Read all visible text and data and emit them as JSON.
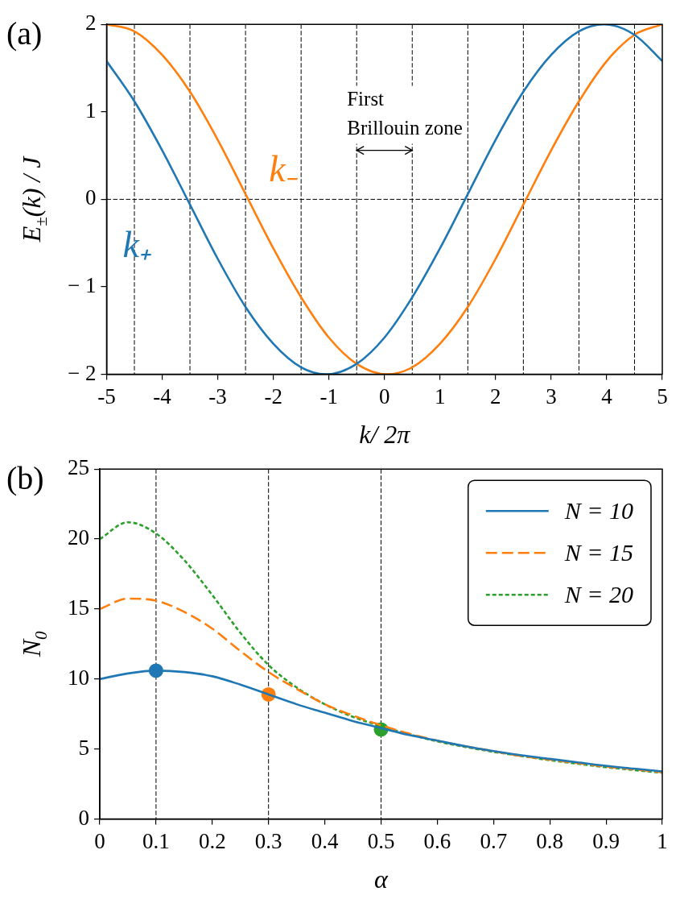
{
  "chart_data": [
    {
      "type": "line",
      "title": "(a)",
      "xlabel": "k/ 2π",
      "ylabel": "E$_{±}$(k) / J",
      "xlim": [
        -5,
        5
      ],
      "ylim": [
        -2,
        2
      ],
      "xticks": [
        -5,
        -4,
        -3,
        -2,
        -1,
        0,
        1,
        2,
        3,
        4,
        5
      ],
      "yticks": [
        {
          "value": -2,
          "label": "− 2"
        },
        {
          "value": -1,
          "label": "− 1"
        },
        0,
        1,
        2
      ],
      "grid": false,
      "legend": false,
      "series": [
        {
          "name": "k₊",
          "color": "#1f77b4",
          "x": [
            -5,
            -4.5,
            -4,
            -3.5,
            -3,
            -2.5,
            -2,
            -1.5,
            -1.05,
            -0.5,
            0,
            0.5,
            1,
            1.5,
            2,
            2.5,
            3,
            3.5,
            3.95,
            4.5,
            5
          ],
          "values": [
            1.58,
            1.12,
            0.56,
            -0.06,
            -0.68,
            -1.23,
            -1.65,
            -1.92,
            -2,
            -1.88,
            -1.58,
            -1.12,
            -0.56,
            0.06,
            0.68,
            1.23,
            1.65,
            1.92,
            2,
            1.88,
            1.58
          ]
        },
        {
          "name": "k₋",
          "color": "#ff7f0e",
          "x": [
            -5,
            -4.5,
            -4,
            -3.5,
            -3,
            -2.5,
            -2,
            -1.5,
            -1,
            -0.5,
            0.05,
            0.5,
            1,
            1.5,
            2,
            2.5,
            3,
            3.5,
            4,
            4.5,
            5
          ],
          "values": [
            2,
            1.92,
            1.65,
            1.23,
            0.68,
            0.06,
            -0.56,
            -1.12,
            -1.58,
            -1.88,
            -2,
            -1.92,
            -1.65,
            -1.23,
            -0.68,
            -0.06,
            0.56,
            1.12,
            1.58,
            1.88,
            2
          ]
        }
      ],
      "ref_lines": [
        {
          "axis": "x",
          "value": -4.5
        },
        {
          "axis": "x",
          "value": -3.5
        },
        {
          "axis": "x",
          "value": -2.5
        },
        {
          "axis": "x",
          "value": -1.5
        },
        {
          "axis": "x",
          "value": -0.5
        },
        {
          "axis": "x",
          "value": 0.5
        },
        {
          "axis": "x",
          "value": 1.5
        },
        {
          "axis": "x",
          "value": 2.5
        },
        {
          "axis": "x",
          "value": 3.5
        },
        {
          "axis": "x",
          "value": 4.5
        },
        {
          "axis": "y",
          "value": 0
        }
      ],
      "annotations": [
        "First Brillouin zone"
      ]
    },
    {
      "type": "line",
      "title": "(b)",
      "xlabel": "α",
      "ylabel": "N$_{0}$",
      "xlim": [
        0,
        1
      ],
      "ylim": [
        0,
        25
      ],
      "xticks": [
        0,
        0.1,
        0.2,
        0.3,
        0.4,
        0.5,
        0.6,
        0.7,
        0.8,
        0.9,
        1
      ],
      "yticks": [
        0,
        5,
        10,
        15,
        20,
        25
      ],
      "grid": false,
      "legend": "top right",
      "x": [
        0,
        0.05,
        0.1,
        0.15,
        0.2,
        0.25,
        0.3,
        0.35,
        0.4,
        0.45,
        0.5,
        0.55,
        0.6,
        0.65,
        0.7,
        0.75,
        0.8,
        0.85,
        0.9,
        0.95,
        1
      ],
      "series": [
        {
          "name": "N = 10",
          "color": "#1f77b4",
          "line_style": "solid",
          "values": [
            10,
            10.4,
            10.6,
            10.5,
            10.2,
            9.6,
            8.9,
            8.2,
            7.6,
            7,
            6.5,
            6,
            5.6,
            5.2,
            4.85,
            4.55,
            4.3,
            4.05,
            3.8,
            3.6,
            3.4
          ]
        },
        {
          "name": "N = 15",
          "color": "#ff7f0e",
          "line_style": "dashed",
          "values": [
            15,
            15.75,
            15.6,
            14.8,
            13.6,
            12,
            10.5,
            9.3,
            8.2,
            7.4,
            6.7,
            6.1,
            5.6,
            5.2,
            4.85,
            4.5,
            4.25,
            4,
            3.75,
            3.55,
            3.35
          ]
        },
        {
          "name": "N = 20",
          "color": "#2ca02c",
          "line_style": "dotted",
          "values": [
            20,
            21.2,
            20.4,
            18.5,
            16,
            13.3,
            11,
            9.4,
            8.2,
            7.3,
            6.65,
            6.05,
            5.55,
            5.15,
            4.8,
            4.5,
            4.2,
            3.95,
            3.7,
            3.5,
            3.3
          ]
        },
        {
          "type": "scatter",
          "marker": "circle",
          "x": [
            0.1,
            0.3,
            0.5
          ],
          "values": [
            10.6,
            8.9,
            6.4
          ],
          "colors": [
            "#1f77b4",
            "#ff7f0e",
            "#2ca02c"
          ]
        }
      ],
      "ref_lines": [
        {
          "axis": "x",
          "value": 0.1
        },
        {
          "axis": "x",
          "value": 0.3
        },
        {
          "axis": "x",
          "value": 0.5
        }
      ]
    }
  ]
}
